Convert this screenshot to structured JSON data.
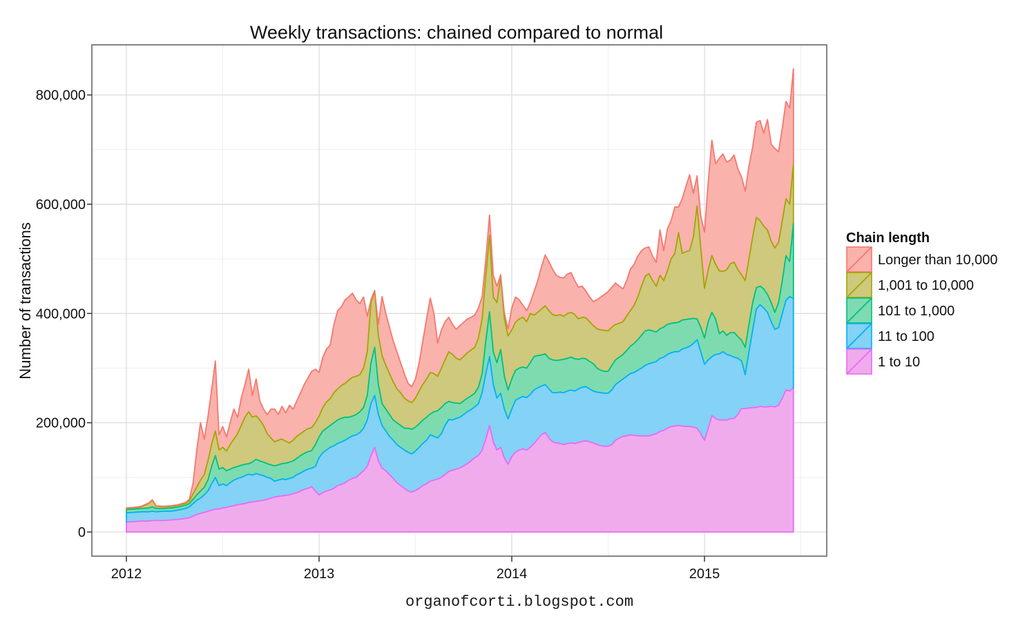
{
  "title": "Weekly transactions: chained compared to normal",
  "footer": "organofcorti.blogspot.com",
  "y_axis": {
    "label": "Number of transactions",
    "tick_labels": [
      "0",
      "200,000",
      "400,000",
      "600,000",
      "800,000"
    ],
    "tick_values_thousands": [
      0,
      200,
      400,
      600,
      800
    ]
  },
  "x_axis": {
    "tick_labels": [
      "2012",
      "2013",
      "2014",
      "2015"
    ],
    "tick_values": [
      2012,
      2013,
      2014,
      2015
    ]
  },
  "legend": {
    "title": "Chain length",
    "entries_top_to_bottom": [
      "Longer than 10,000",
      "1,001 to 10,000",
      "101 to 1,000",
      "11 to 100",
      "1 to 10"
    ]
  },
  "chart_data": {
    "type": "area",
    "stacked": true,
    "title": "Weekly transactions: chained compared to normal",
    "xlabel": "",
    "ylabel": "Number of transactions",
    "legend_position": "right",
    "grid": "major and minor, light gray on white panel",
    "value_unit": "thousands of transactions per week",
    "x_unit": "weeks since start of 2012",
    "weeks_per_year": 52,
    "x_range_years": [
      2012.0,
      2015.46
    ],
    "ylim_thousands": [
      0,
      891
    ],
    "x": [
      0,
      2,
      4,
      6,
      7,
      8,
      10,
      12,
      14,
      16,
      17,
      18,
      19,
      20,
      21,
      22,
      23,
      24,
      25,
      26,
      27,
      28,
      29,
      30,
      31,
      32,
      33,
      34,
      35,
      36,
      37,
      38,
      39,
      40,
      41,
      42,
      43,
      44,
      45,
      46,
      47,
      48,
      49,
      50,
      51,
      52,
      53,
      54,
      55,
      56,
      57,
      58,
      59,
      60,
      61,
      62,
      63,
      64,
      65,
      66,
      67,
      68,
      69,
      70,
      71,
      72,
      73,
      74,
      75,
      76,
      77,
      78,
      79,
      80,
      81,
      82,
      83,
      84,
      85,
      86,
      87,
      88,
      89,
      90,
      91,
      92,
      93,
      94,
      95,
      96,
      97,
      98,
      99,
      100,
      101,
      102,
      103,
      104,
      105,
      106,
      107,
      108,
      109,
      110,
      111,
      112,
      113,
      114,
      115,
      116,
      117,
      118,
      119,
      120,
      121,
      122,
      123,
      124,
      125,
      126,
      127,
      128,
      129,
      130,
      131,
      132,
      133,
      134,
      135,
      136,
      137,
      138,
      139,
      140,
      141,
      142,
      143,
      144,
      145,
      146,
      147,
      148,
      149,
      150,
      151,
      152,
      153,
      154,
      155,
      156,
      157,
      158,
      159,
      160,
      161,
      162,
      163,
      164,
      165,
      166,
      167,
      168,
      169,
      170,
      171,
      172,
      173,
      174,
      175,
      176,
      177,
      178,
      179,
      180
    ],
    "series": [
      {
        "name": "1 to 10",
        "line_color": "#E76BF3",
        "fill_color": "#F0ABED",
        "values": [
          18,
          19,
          20,
          20,
          21,
          21,
          21,
          22,
          23,
          25,
          26,
          29,
          32,
          34,
          36,
          38,
          40,
          42,
          42,
          44,
          45,
          47,
          48,
          50,
          51,
          52,
          54,
          55,
          56,
          57,
          58,
          60,
          62,
          64,
          65,
          66,
          67,
          68,
          70,
          72,
          75,
          78,
          80,
          83,
          75,
          68,
          72,
          75,
          77,
          80,
          85,
          87,
          90,
          95,
          98,
          100,
          106,
          112,
          120,
          140,
          155,
          130,
          117,
          112,
          105,
          98,
          90,
          85,
          80,
          75,
          73,
          76,
          80,
          85,
          88,
          93,
          95,
          97,
          100,
          105,
          111,
          113,
          115,
          117,
          121,
          125,
          130,
          136,
          140,
          150,
          170,
          195,
          165,
          150,
          155,
          135,
          124,
          138,
          146,
          150,
          152,
          150,
          155,
          162,
          170,
          178,
          182,
          172,
          165,
          163,
          162,
          160,
          162,
          163,
          162,
          164,
          166,
          167,
          165,
          163,
          160,
          158,
          157,
          157,
          160,
          168,
          172,
          175,
          176,
          178,
          177,
          176,
          176,
          176,
          176,
          178,
          180,
          184,
          186,
          190,
          193,
          194,
          195,
          194,
          193,
          193,
          192,
          190,
          180,
          168,
          190,
          213,
          208,
          205,
          205,
          205,
          207,
          208,
          215,
          226,
          226,
          227,
          228,
          228,
          230,
          229,
          229,
          230,
          229,
          232,
          245,
          260,
          258,
          264
        ]
      },
      {
        "name": "11 to 100",
        "line_color": "#00B0F6",
        "fill_color": "#84D2F6",
        "values": [
          17,
          17,
          17,
          17,
          17,
          16,
          17,
          16,
          17,
          18,
          20,
          23,
          26,
          28,
          32,
          37,
          48,
          58,
          43,
          44,
          40,
          43,
          47,
          48,
          49,
          51,
          52,
          49,
          51,
          48,
          45,
          40,
          36,
          29,
          30,
          31,
          29,
          30,
          30,
          33,
          33,
          34,
          35,
          34,
          45,
          68,
          73,
          75,
          78,
          78,
          77,
          78,
          78,
          77,
          78,
          78,
          76,
          78,
          85,
          95,
          95,
          85,
          78,
          73,
          70,
          70,
          70,
          70,
          70,
          71,
          70,
          72,
          75,
          77,
          80,
          85,
          80,
          75,
          80,
          90,
          95,
          92,
          93,
          93,
          94,
          95,
          94,
          93,
          95,
          105,
          120,
          126,
          105,
          95,
          99,
          90,
          83,
          87,
          95,
          95,
          96,
          96,
          97,
          98,
          94,
          89,
          88,
          90,
          90,
          92,
          94,
          95,
          96,
          97,
          96,
          98,
          99,
          99,
          97,
          95,
          96,
          97,
          97,
          97,
          100,
          102,
          103,
          105,
          109,
          112,
          115,
          120,
          124,
          129,
          132,
          132,
          132,
          134,
          134,
          135,
          135,
          136,
          135,
          141,
          144,
          147,
          153,
          162,
          150,
          139,
          125,
          108,
          117,
          121,
          125,
          120,
          116,
          112,
          103,
          87,
          62,
          103,
          142,
          180,
          186,
          181,
          173,
          155,
          142,
          142,
          155,
          164,
          173,
          163
        ]
      },
      {
        "name": "101 to 1,000",
        "line_color": "#00BF7D",
        "fill_color": "#7EDBB0",
        "values": [
          6,
          6,
          6,
          7,
          8,
          6,
          5,
          6,
          6,
          6,
          6,
          8,
          10,
          13,
          14,
          20,
          32,
          40,
          30,
          30,
          27,
          25,
          23,
          22,
          22,
          21,
          19,
          24,
          26,
          25,
          25,
          25,
          25,
          28,
          28,
          28,
          30,
          30,
          30,
          30,
          32,
          32,
          32,
          32,
          40,
          38,
          40,
          40,
          40,
          42,
          43,
          43,
          42,
          38,
          36,
          37,
          38,
          38,
          45,
          75,
          88,
          55,
          40,
          40,
          40,
          37,
          40,
          40,
          40,
          44,
          45,
          44,
          43,
          43,
          42,
          38,
          45,
          50,
          48,
          40,
          33,
          32,
          28,
          25,
          25,
          25,
          25,
          25,
          30,
          35,
          60,
          82,
          60,
          65,
          80,
          60,
          53,
          55,
          55,
          55,
          54,
          54,
          58,
          61,
          59,
          57,
          56,
          56,
          60,
          59,
          59,
          61,
          60,
          60,
          59,
          54,
          53,
          51,
          50,
          50,
          44,
          41,
          40,
          40,
          45,
          45,
          45,
          45,
          47,
          50,
          53,
          56,
          60,
          63,
          62,
          58,
          54,
          54,
          55,
          55,
          54,
          53,
          54,
          53,
          52,
          50,
          46,
          38,
          45,
          48,
          70,
          81,
          65,
          37,
          38,
          35,
          42,
          45,
          40,
          38,
          50,
          50,
          50,
          39,
          34,
          35,
          33,
          35,
          31,
          46,
          60,
          82,
          64,
          139
        ]
      },
      {
        "name": "1,001 to 10,000",
        "line_color": "#A3A500",
        "fill_color": "#CEC97C",
        "values": [
          2,
          2,
          3,
          8,
          12,
          4,
          3,
          3,
          3,
          3,
          5,
          10,
          14,
          20,
          23,
          35,
          40,
          45,
          35,
          37,
          36,
          45,
          52,
          60,
          73,
          86,
          95,
          82,
          80,
          75,
          67,
          55,
          49,
          44,
          45,
          45,
          40,
          35,
          38,
          40,
          40,
          41,
          42,
          42,
          40,
          38,
          43,
          48,
          49,
          55,
          57,
          60,
          62,
          68,
          71,
          70,
          68,
          72,
          80,
          110,
          102,
          90,
          88,
          80,
          75,
          70,
          62,
          60,
          55,
          50,
          49,
          53,
          60,
          65,
          70,
          76,
          70,
          63,
          72,
          80,
          91,
          88,
          82,
          80,
          81,
          83,
          84,
          84,
          90,
          100,
          120,
          140,
          100,
          110,
          133,
          105,
          99,
          90,
          88,
          90,
          91,
          85,
          90,
          76,
          79,
          84,
          88,
          87,
          83,
          82,
          83,
          79,
          82,
          82,
          81,
          74,
          75,
          75,
          73,
          70,
          72,
          74,
          75,
          74,
          70,
          65,
          62,
          60,
          63,
          65,
          70,
          78,
          90,
          100,
          103,
          92,
          84,
          98,
          85,
          98,
          118,
          127,
          164,
          122,
          124,
          125,
          149,
          207,
          145,
          91,
          95,
          104,
          100,
          115,
          109,
          120,
          126,
          129,
          122,
          120,
          122,
          120,
          120,
          129,
          120,
          115,
          118,
          112,
          118,
          110,
          110,
          104,
          105,
          108
        ]
      },
      {
        "name": "Longer than 10,000",
        "line_color": "#F8766D",
        "fill_color": "#F9B2AC",
        "values": [
          1,
          1,
          1,
          1,
          1,
          1,
          1,
          1,
          1,
          2,
          3,
          20,
          68,
          105,
          65,
          80,
          100,
          128,
          28,
          38,
          26,
          40,
          55,
          30,
          50,
          60,
          78,
          40,
          67,
          35,
          30,
          35,
          53,
          60,
          47,
          60,
          52,
          69,
          57,
          65,
          75,
          85,
          93,
          103,
          98,
          80,
          92,
          97,
          98,
          125,
          143,
          144,
          153,
          152,
          154,
          140,
          130,
          130,
          65,
          5,
          2,
          20,
          108,
          95,
          85,
          75,
          68,
          55,
          45,
          32,
          29,
          35,
          52,
          80,
          110,
          136,
          110,
          61,
          70,
          70,
          63,
          55,
          53,
          63,
          63,
          62,
          60,
          59,
          55,
          41,
          30,
          37,
          40,
          30,
          4,
          10,
          13,
          40,
          46,
          35,
          22,
          20,
          20,
          43,
          58,
          77,
          93,
          90,
          83,
          74,
          68,
          70,
          72,
          73,
          62,
          58,
          57,
          49,
          45,
          44,
          53,
          60,
          66,
          72,
          73,
          76,
          68,
          60,
          65,
          76,
          75,
          75,
          65,
          52,
          49,
          45,
          44,
          83,
          55,
          77,
          70,
          85,
          47,
          100,
          120,
          139,
          80,
          55,
          58,
          103,
          160,
          211,
          184,
          206,
          215,
          197,
          190,
          196,
          185,
          179,
          164,
          170,
          165,
          174,
          183,
          170,
          202,
          178,
          182,
          166,
          170,
          178,
          176,
          174
        ]
      }
    ]
  }
}
